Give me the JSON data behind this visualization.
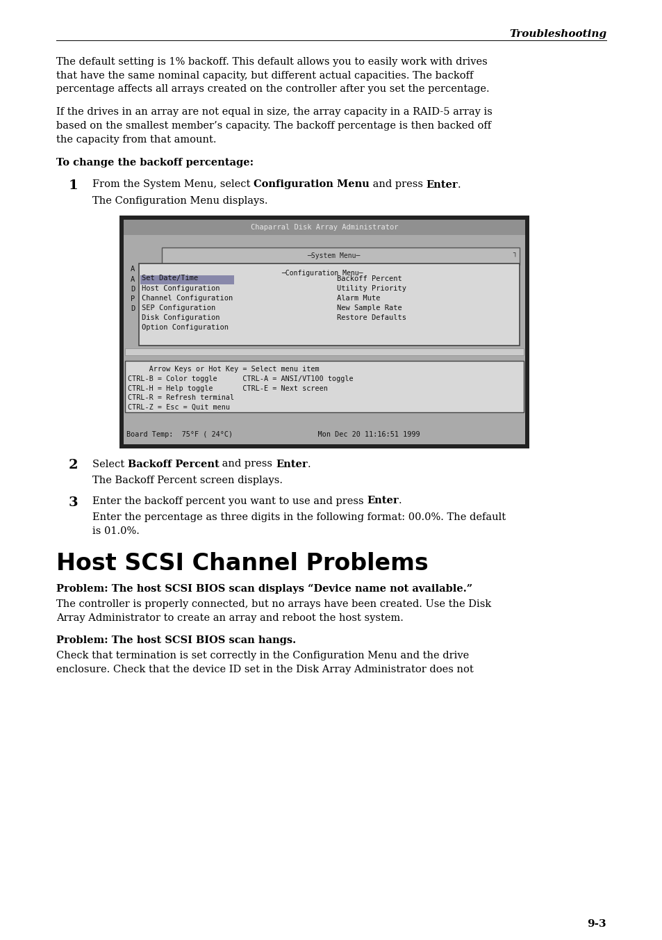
{
  "page_bg": "#ffffff",
  "header_text": "Troubleshooting",
  "footer_text": "9-3",
  "para1_lines": [
    "The default setting is 1% backoff. This default allows you to easily work with drives",
    "that have the same nominal capacity, but different actual capacities. The backoff",
    "percentage affects all arrays created on the controller after you set the percentage."
  ],
  "para2_lines": [
    "If the drives in an array are not equal in size, the array capacity in a RAID-5 array is",
    "based on the smallest member’s capacity. The backoff percentage is then backed off",
    "the capacity from that amount."
  ],
  "bold_heading1": "To change the backoff percentage:",
  "step1_num": "1",
  "step1_parts": [
    [
      "From the System Menu, select ",
      false
    ],
    [
      "Configuration Menu",
      true
    ],
    [
      " and press ",
      false
    ],
    [
      "Enter",
      true
    ],
    [
      ".",
      false
    ]
  ],
  "step1_sub": "The Configuration Menu displays.",
  "step2_num": "2",
  "step2_parts": [
    [
      "Select ",
      false
    ],
    [
      "Backoff Percent",
      true
    ],
    [
      " and press ",
      false
    ],
    [
      "Enter",
      true
    ],
    [
      ".",
      false
    ]
  ],
  "step2_sub": "The Backoff Percent screen displays.",
  "step3_num": "3",
  "step3_parts": [
    [
      "Enter the backoff percent you want to use and press ",
      false
    ],
    [
      "Enter",
      true
    ],
    [
      ".",
      false
    ]
  ],
  "step3_sub_lines": [
    "Enter the percentage as three digits in the following format: 00.0%. The default",
    "is 01.0%."
  ],
  "section_title": "Host SCSI Channel Problems",
  "prob1_bold": "Problem: The host SCSI BIOS scan displays “Device name not available.”",
  "prob1_lines": [
    "The controller is properly connected, but no arrays have been created. Use the Disk",
    "Array Administrator to create an array and reboot the host system."
  ],
  "prob2_bold": "Problem: The host SCSI BIOS scan hangs.",
  "prob2_lines": [
    "Check that termination is set correctly in the Configuration Menu and the drive",
    "enclosure. Check that the device ID set in the Disk Array Administrator does not"
  ],
  "screen_title": "Chaparral Disk Array Administrator",
  "sys_menu_label": "─System Menu──────────────────────────────────────────────────────────────────",
  "cfg_menu_label": "─Configuration Menu─",
  "left_letters": [
    "A",
    "A",
    "D",
    "P",
    "D",
    " ",
    " "
  ],
  "menu_items_left": [
    "Set Date/Time",
    "Host Configuration",
    "Channel Configuration",
    "SEP Configuration",
    "Disk Configuration",
    "Option Configuration"
  ],
  "menu_items_right": [
    "Backoff Percent",
    "Utility Priority",
    "Alarm Mute",
    "New Sample Rate",
    "Restore Defaults"
  ],
  "help_lines": [
    "     Arrow Keys or Hot Key = Select menu item",
    "CTRL-B = Color toggle      CTRL-A = ANSI/VT100 toggle",
    "CTRL-H = Help toggle       CTRL-E = Next screen",
    "CTRL-R = Refresh terminal",
    "CTRL-Z = Esc = Quit menu"
  ],
  "screen_footer": "Board Temp:  75°F ( 24°C)                    Mon Dec 20 11:16:51 1999",
  "outer_bg": "#3a3a3a",
  "inner_bg": "#b8b8b8",
  "title_bar_bg": "#888888",
  "title_bar_fg": "#e0e0e0",
  "menu_bg": "#cccccc",
  "config_bg": "#d8d8d8",
  "highlight_bg": "#9999bb",
  "help_bg": "#d8d8d8"
}
